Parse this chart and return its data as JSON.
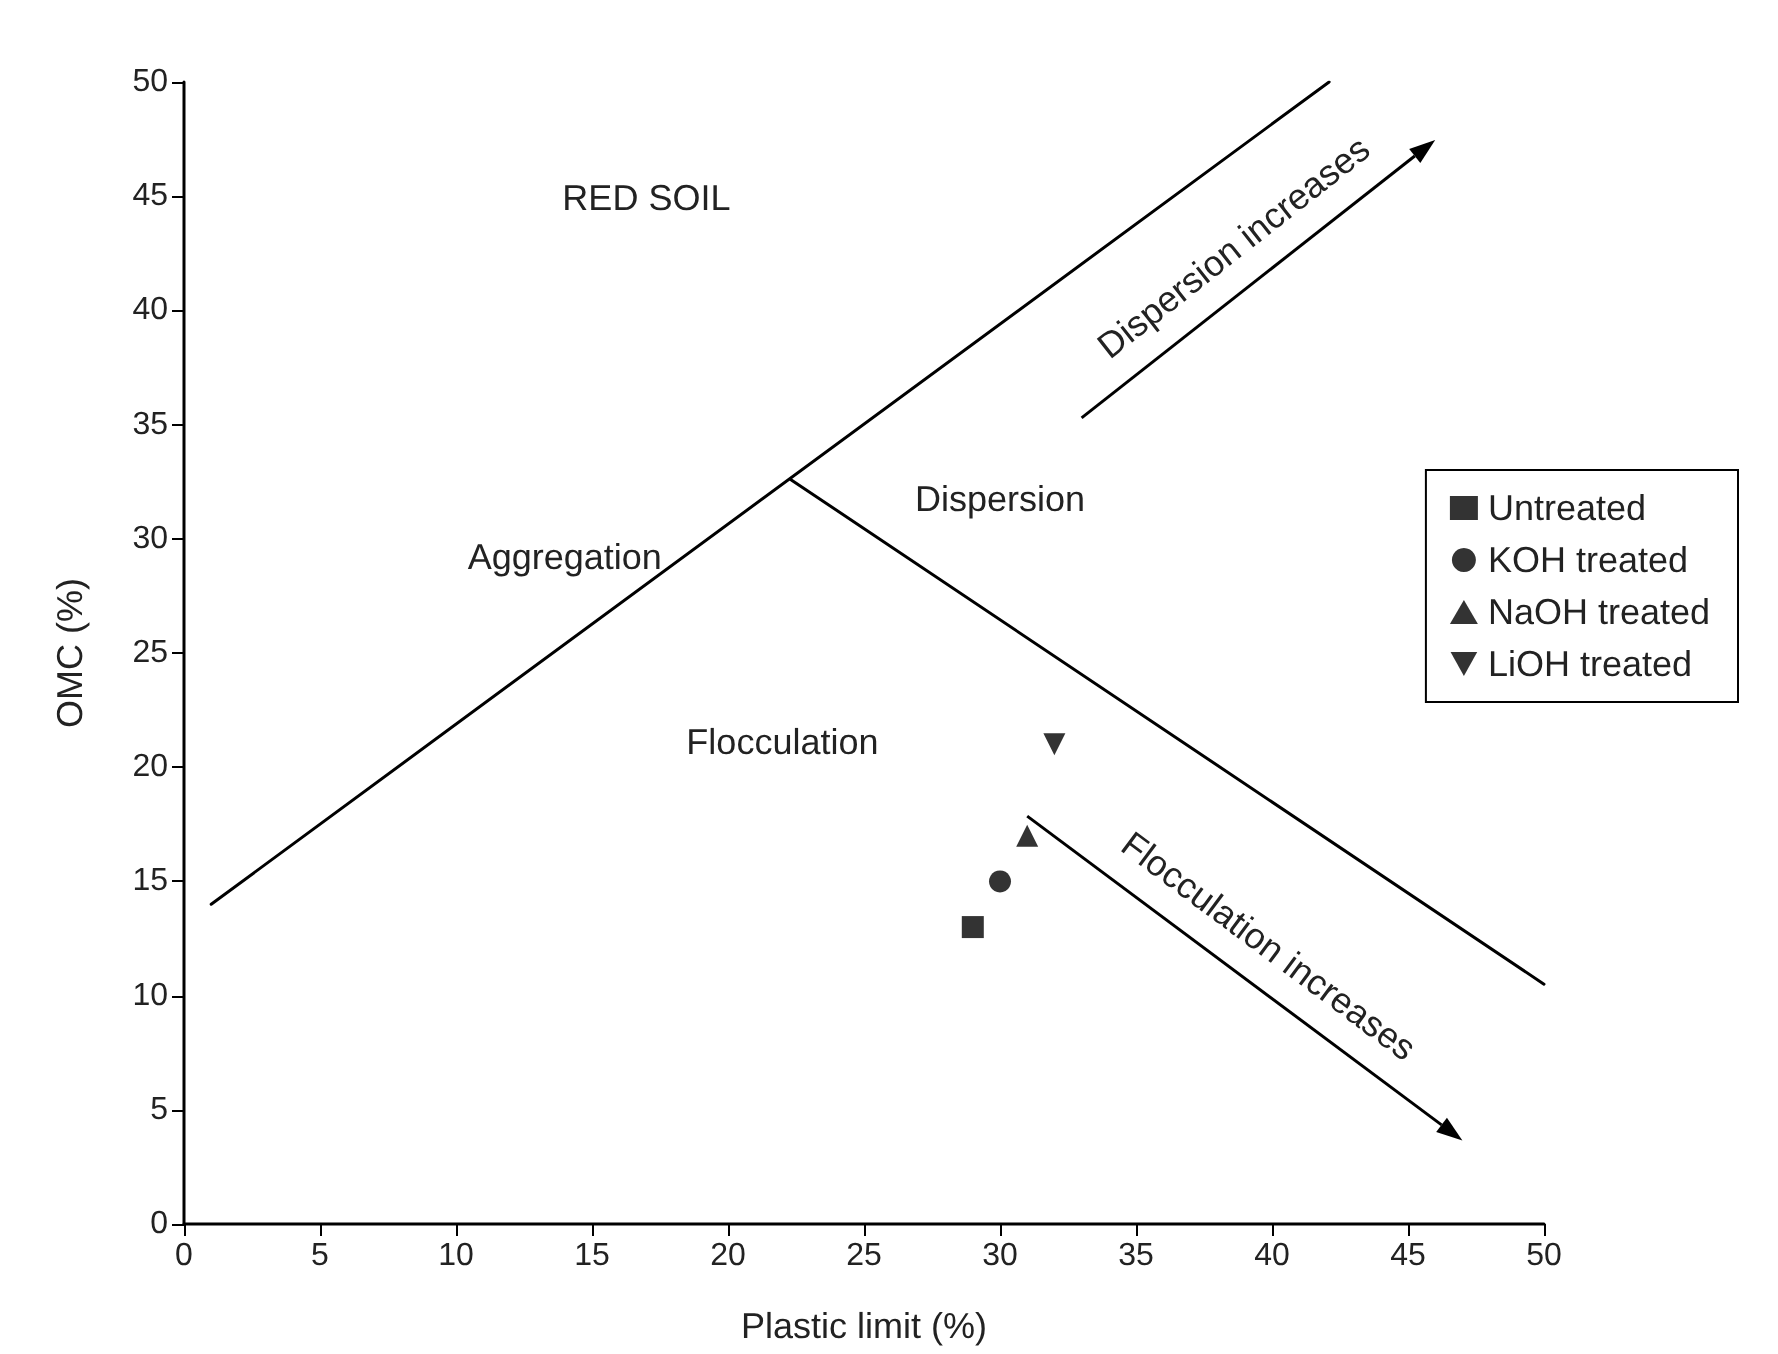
{
  "chart_data": {
    "type": "scatter",
    "xlabel": "Plastic limit (%)",
    "ylabel": "OMC (%)",
    "xlim": [
      0,
      50
    ],
    "xticks": [
      0,
      5,
      10,
      15,
      20,
      25,
      30,
      35,
      40,
      45,
      50
    ],
    "ylim": [
      0,
      50
    ],
    "yticks": [
      0,
      5,
      10,
      15,
      20,
      25,
      30,
      35,
      40,
      45,
      50
    ],
    "grid": false,
    "legend": "right",
    "series": [
      {
        "name": "Untreated",
        "color": "#000000",
        "marker": "square",
        "x": [
          29
        ],
        "values": [
          13
        ]
      },
      {
        "name": "KOH treated",
        "color": "#000000",
        "marker": "circle",
        "x": [
          30
        ],
        "values": [
          15
        ]
      },
      {
        "name": "NaOH treated",
        "color": "#000000",
        "marker": "triangle",
        "x": [
          31
        ],
        "values": [
          17
        ]
      },
      {
        "name": "LiOH treated",
        "color": "#000000",
        "marker": "triangle-down",
        "x": [
          32
        ],
        "values": [
          21
        ]
      },
      {
        "type": "line",
        "color": "#000000",
        "marker": "none",
        "x": [
          1,
          42.1
        ],
        "values": [
          14,
          50
        ]
      },
      {
        "type": "line",
        "color": "#000000",
        "marker": "none",
        "x": [
          22.3,
          50
        ],
        "values": [
          32.6,
          10.5
        ]
      }
    ],
    "annotations": [
      "RED SOIL",
      "Aggregation",
      "Dispersion",
      "Flocculation",
      "Dispersion increases",
      "Flocculation increases"
    ]
  }
}
